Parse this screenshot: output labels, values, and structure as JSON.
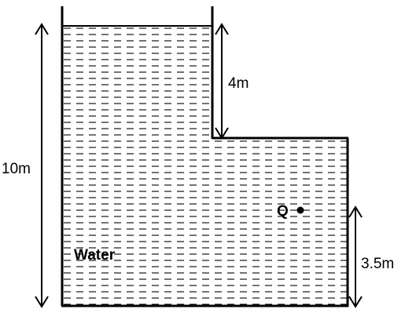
{
  "diagram": {
    "labels": {
      "total_depth": "10m",
      "step_height": "4m",
      "point_height": "3.5m",
      "point": "Q",
      "fluid": "Water"
    },
    "colors": {
      "stroke": "#000000",
      "background": "#ffffff"
    }
  }
}
